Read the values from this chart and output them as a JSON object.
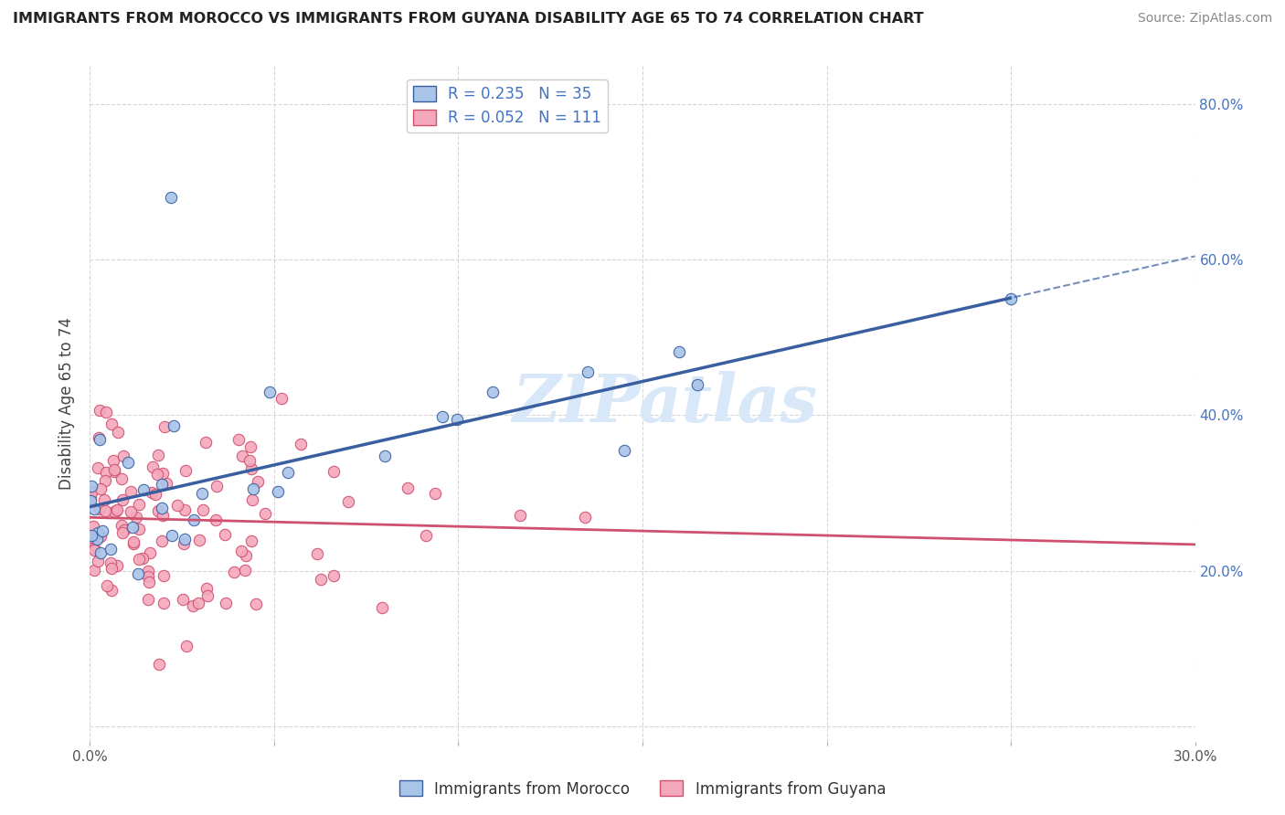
{
  "title": "IMMIGRANTS FROM MOROCCO VS IMMIGRANTS FROM GUYANA DISABILITY AGE 65 TO 74 CORRELATION CHART",
  "source": "Source: ZipAtlas.com",
  "ylabel": "Disability Age 65 to 74",
  "xlim": [
    0.0,
    0.3
  ],
  "ylim": [
    0.0,
    0.85
  ],
  "xtick_positions": [
    0.0,
    0.05,
    0.1,
    0.15,
    0.2,
    0.25,
    0.3
  ],
  "xtick_labels": [
    "0.0%",
    "",
    "",
    "",
    "",
    "",
    "30.0%"
  ],
  "ytick_positions": [
    0.0,
    0.2,
    0.4,
    0.6,
    0.8
  ],
  "ytick_labels": [
    "",
    "20.0%",
    "40.0%",
    "60.0%",
    "80.0%"
  ],
  "morocco_R": 0.235,
  "morocco_N": 35,
  "guyana_R": 0.052,
  "guyana_N": 111,
  "morocco_color": "#a8c4e8",
  "guyana_color": "#f4a8bc",
  "morocco_line_color": "#3a5fa0",
  "guyana_line_color": "#d05070",
  "watermark": "ZIPatlas",
  "watermark_color": "#d8e8f8",
  "legend_label_morocco": "R = 0.235   N = 35",
  "legend_label_guyana": "R = 0.052   N = 111",
  "bottom_legend_morocco": "Immigrants from Morocco",
  "bottom_legend_guyana": "Immigrants from Guyana",
  "morocco_seed": 42,
  "guyana_seed": 99
}
